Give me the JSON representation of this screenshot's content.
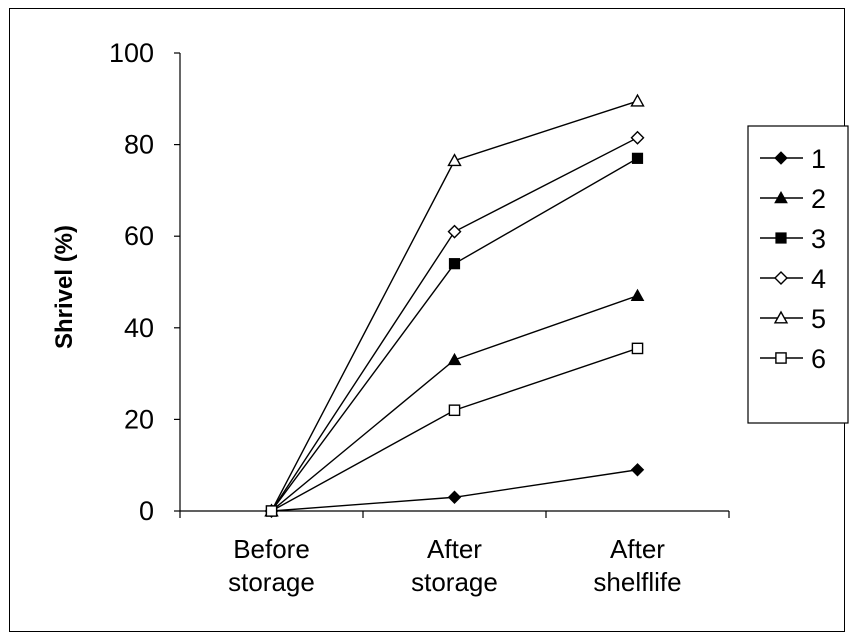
{
  "chart_data": {
    "type": "line",
    "title": "",
    "xlabel": "",
    "ylabel": "Shrivel (%)",
    "ylim": [
      0,
      100
    ],
    "yticks": [
      0,
      20,
      40,
      60,
      80,
      100
    ],
    "categories": [
      [
        "Before",
        "storage"
      ],
      [
        "After",
        "storage"
      ],
      [
        "After",
        "shelflife"
      ]
    ],
    "series": [
      {
        "name": "1",
        "marker": "diamond-filled",
        "values": [
          0,
          3,
          9
        ]
      },
      {
        "name": "2",
        "marker": "triangle-filled",
        "values": [
          0,
          33,
          47
        ]
      },
      {
        "name": "3",
        "marker": "square-filled",
        "values": [
          0,
          54,
          77
        ]
      },
      {
        "name": "4",
        "marker": "diamond-open",
        "values": [
          0,
          61,
          81.5
        ]
      },
      {
        "name": "5",
        "marker": "triangle-open",
        "values": [
          0,
          76.5,
          89.5
        ]
      },
      {
        "name": "6",
        "marker": "square-open",
        "values": [
          0,
          22,
          35.5
        ]
      }
    ],
    "legend_position": "right",
    "grid": false,
    "line_color": "#000000"
  }
}
